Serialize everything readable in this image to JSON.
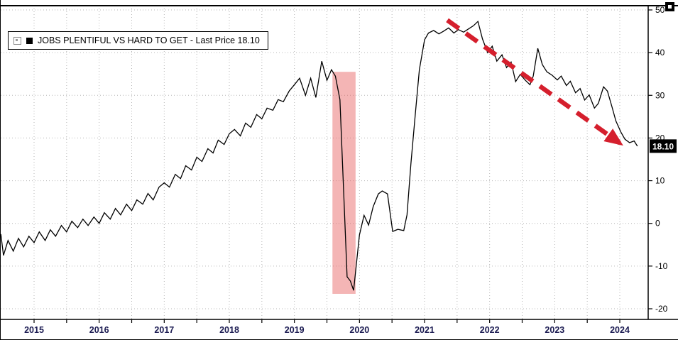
{
  "legend": {
    "label": "JOBS PLENTIFUL VS HARD TO GET - Last Price 18.10"
  },
  "last_price_label": "18.10",
  "chart_data": {
    "type": "line",
    "title": "JOBS PLENTIFUL VS HARD TO GET",
    "last_price": 18.1,
    "ylim": [
      -20,
      50
    ],
    "xlim": [
      2014.49,
      2024.43
    ],
    "yticks": [
      50,
      40,
      30,
      20,
      10,
      0,
      -10,
      -20
    ],
    "xticks": [
      2015,
      2016,
      2017,
      2018,
      2019,
      2020,
      2021,
      2022,
      2023,
      2024
    ],
    "grid": "dotted",
    "legend_position": "top-left",
    "yaxis_side": "right",
    "colors": {
      "line": "#000000",
      "grid": "#b6b6b6",
      "frame": "#000000",
      "x_labels": "#1b1b52",
      "y_labels": "#000000",
      "band": "rgba(230,90,90,0.45)",
      "arrow": "#d51f2d",
      "badge_bg": "#000000",
      "badge_text": "#ffffff"
    },
    "annotations": {
      "recession_band": {
        "x0": 2019.585,
        "x1": 2019.94,
        "y0": -16.5,
        "y1": 35.5
      },
      "trend_arrow": {
        "x0": 2021.35,
        "y0": 47.6,
        "x1": 2024.0,
        "y1": 18.8,
        "style": "dashed"
      }
    },
    "series": [
      {
        "name": "JOBS PLENTIFUL VS HARD TO GET",
        "color": "#000000",
        "points": [
          [
            2014.49,
            -2.5
          ],
          [
            2014.53,
            -7.5
          ],
          [
            2014.6,
            -4.0
          ],
          [
            2014.68,
            -6.5
          ],
          [
            2014.76,
            -3.5
          ],
          [
            2014.84,
            -5.5
          ],
          [
            2014.92,
            -3.0
          ],
          [
            2015.0,
            -4.5
          ],
          [
            2015.08,
            -2.0
          ],
          [
            2015.17,
            -4.0
          ],
          [
            2015.25,
            -1.5
          ],
          [
            2015.33,
            -3.0
          ],
          [
            2015.42,
            -0.5
          ],
          [
            2015.5,
            -2.0
          ],
          [
            2015.58,
            0.5
          ],
          [
            2015.67,
            -1.0
          ],
          [
            2015.75,
            1.0
          ],
          [
            2015.83,
            -0.5
          ],
          [
            2015.92,
            1.5
          ],
          [
            2016.0,
            0.0
          ],
          [
            2016.08,
            2.5
          ],
          [
            2016.17,
            1.0
          ],
          [
            2016.25,
            3.5
          ],
          [
            2016.33,
            2.0
          ],
          [
            2016.42,
            4.5
          ],
          [
            2016.5,
            3.0
          ],
          [
            2016.58,
            5.5
          ],
          [
            2016.67,
            4.5
          ],
          [
            2016.75,
            7.0
          ],
          [
            2016.83,
            5.5
          ],
          [
            2016.92,
            8.5
          ],
          [
            2017.0,
            9.5
          ],
          [
            2017.08,
            8.5
          ],
          [
            2017.17,
            11.5
          ],
          [
            2017.25,
            10.5
          ],
          [
            2017.33,
            13.5
          ],
          [
            2017.42,
            12.5
          ],
          [
            2017.5,
            15.5
          ],
          [
            2017.58,
            14.5
          ],
          [
            2017.67,
            17.5
          ],
          [
            2017.75,
            16.5
          ],
          [
            2017.83,
            19.5
          ],
          [
            2017.92,
            18.5
          ],
          [
            2018.0,
            21.0
          ],
          [
            2018.08,
            22.0
          ],
          [
            2018.17,
            20.5
          ],
          [
            2018.25,
            23.5
          ],
          [
            2018.33,
            22.5
          ],
          [
            2018.42,
            25.5
          ],
          [
            2018.5,
            24.5
          ],
          [
            2018.58,
            27.0
          ],
          [
            2018.67,
            26.5
          ],
          [
            2018.75,
            29.0
          ],
          [
            2018.83,
            28.5
          ],
          [
            2018.92,
            31.0
          ],
          [
            2019.0,
            32.5
          ],
          [
            2019.08,
            34.0
          ],
          [
            2019.17,
            30.0
          ],
          [
            2019.25,
            34.0
          ],
          [
            2019.33,
            29.5
          ],
          [
            2019.42,
            38.0
          ],
          [
            2019.5,
            33.5
          ],
          [
            2019.57,
            36.0
          ],
          [
            2019.63,
            34.5
          ],
          [
            2019.7,
            29.0
          ],
          [
            2019.81,
            -12.5
          ],
          [
            2019.86,
            -13.5
          ],
          [
            2019.91,
            -15.7
          ],
          [
            2020.0,
            -2.7
          ],
          [
            2020.07,
            1.9
          ],
          [
            2020.14,
            -0.4
          ],
          [
            2020.21,
            3.9
          ],
          [
            2020.29,
            6.9
          ],
          [
            2020.35,
            7.6
          ],
          [
            2020.43,
            6.9
          ],
          [
            2020.51,
            -1.9
          ],
          [
            2020.59,
            -1.4
          ],
          [
            2020.68,
            -1.7
          ],
          [
            2020.73,
            2.0
          ],
          [
            2020.79,
            14.0
          ],
          [
            2020.86,
            26.0
          ],
          [
            2020.92,
            36.0
          ],
          [
            2021.0,
            43.0
          ],
          [
            2021.06,
            44.6
          ],
          [
            2021.14,
            45.2
          ],
          [
            2021.22,
            44.4
          ],
          [
            2021.29,
            45.0
          ],
          [
            2021.37,
            45.8
          ],
          [
            2021.45,
            44.6
          ],
          [
            2021.52,
            45.4
          ],
          [
            2021.6,
            44.8
          ],
          [
            2021.67,
            45.5
          ],
          [
            2021.75,
            46.3
          ],
          [
            2021.82,
            47.3
          ],
          [
            2021.89,
            43.2
          ],
          [
            2021.97,
            40.0
          ],
          [
            2022.04,
            41.5
          ],
          [
            2022.11,
            38.0
          ],
          [
            2022.19,
            39.5
          ],
          [
            2022.26,
            36.5
          ],
          [
            2022.33,
            37.8
          ],
          [
            2022.4,
            33.2
          ],
          [
            2022.47,
            34.9
          ],
          [
            2022.55,
            33.5
          ],
          [
            2022.62,
            32.5
          ],
          [
            2022.67,
            34.5
          ],
          [
            2022.74,
            41.0
          ],
          [
            2022.81,
            37.2
          ],
          [
            2022.88,
            35.5
          ],
          [
            2022.96,
            34.7
          ],
          [
            2023.04,
            33.6
          ],
          [
            2023.1,
            34.5
          ],
          [
            2023.18,
            32.3
          ],
          [
            2023.24,
            33.3
          ],
          [
            2023.32,
            30.6
          ],
          [
            2023.39,
            31.6
          ],
          [
            2023.46,
            28.9
          ],
          [
            2023.53,
            30.1
          ],
          [
            2023.61,
            27.0
          ],
          [
            2023.67,
            28.1
          ],
          [
            2023.75,
            32.0
          ],
          [
            2023.81,
            31.0
          ],
          [
            2023.88,
            27.3
          ],
          [
            2023.94,
            24.0
          ],
          [
            2024.02,
            21.3
          ],
          [
            2024.08,
            19.7
          ],
          [
            2024.15,
            18.9
          ],
          [
            2024.22,
            19.3
          ],
          [
            2024.27,
            18.1
          ]
        ]
      }
    ]
  }
}
